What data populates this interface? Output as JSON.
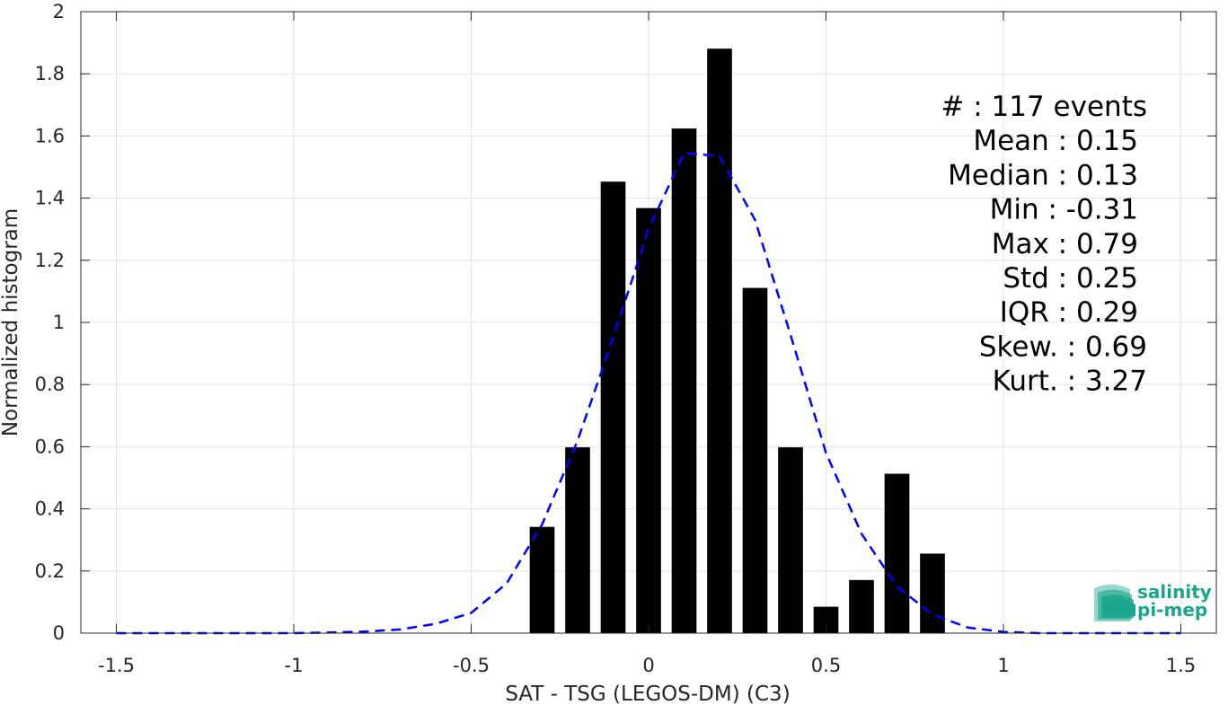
{
  "chart_data": {
    "type": "bar",
    "xlabel": "SAT - TSG (LEGOS-DM) (C3)",
    "ylabel": "Normalized histogram",
    "xlim": [
      -1.6,
      1.6
    ],
    "ylim": [
      0,
      2
    ],
    "xticks": [
      -1.5,
      -1,
      -0.5,
      0,
      0.5,
      1,
      1.5
    ],
    "xtick_labels": [
      "-1.5",
      "-1",
      "-0.5",
      "0",
      "0.5",
      "1",
      "1.5"
    ],
    "yticks": [
      0,
      0.2,
      0.4,
      0.6,
      0.8,
      1,
      1.2,
      1.4,
      1.6,
      1.8,
      2
    ],
    "ytick_labels": [
      "0",
      "0.2",
      "0.4",
      "0.6",
      "0.8",
      "1",
      "1.2",
      "1.4",
      "1.6",
      "1.8",
      "2"
    ],
    "grid": true,
    "bar_width": 0.07,
    "bars": {
      "color": "#000000",
      "x": [
        -0.3,
        -0.2,
        -0.1,
        0.0,
        0.1,
        0.2,
        0.3,
        0.4,
        0.5,
        0.6,
        0.7,
        0.8
      ],
      "values": [
        0.342,
        0.598,
        1.453,
        1.368,
        1.624,
        1.881,
        1.111,
        0.598,
        0.085,
        0.171,
        0.513,
        0.256
      ]
    },
    "fit_curve": {
      "style": "dashed",
      "color": "#0000ff",
      "x": [
        -1.5,
        -1.4,
        -1.3,
        -1.2,
        -1.1,
        -1.0,
        -0.9,
        -0.8,
        -0.7,
        -0.6,
        -0.5,
        -0.4,
        -0.3,
        -0.2,
        -0.1,
        0.0,
        0.1,
        0.2,
        0.3,
        0.4,
        0.5,
        0.6,
        0.7,
        0.8,
        0.9,
        1.0,
        1.1,
        1.2,
        1.3,
        1.4,
        1.5
      ],
      "y": [
        0,
        0,
        0,
        0,
        0,
        0,
        0.002,
        0.005,
        0.012,
        0.03,
        0.065,
        0.16,
        0.35,
        0.62,
        0.95,
        1.3,
        1.545,
        1.535,
        1.33,
        0.96,
        0.58,
        0.32,
        0.15,
        0.06,
        0.018,
        0.004,
        0,
        0,
        0,
        0,
        0
      ]
    },
    "annotations": [
      "#  : 117 events",
      "Mean : 0.15",
      "Median : 0.13",
      "Min : -0.31",
      "Max : 0.79",
      "Std : 0.25",
      "IQR : 0.29",
      "Skew. : 0.69",
      "Kurt. : 3.27"
    ]
  },
  "logo": {
    "line1": "salinity",
    "line2": "pi-mep",
    "color": "#1aa68d"
  }
}
